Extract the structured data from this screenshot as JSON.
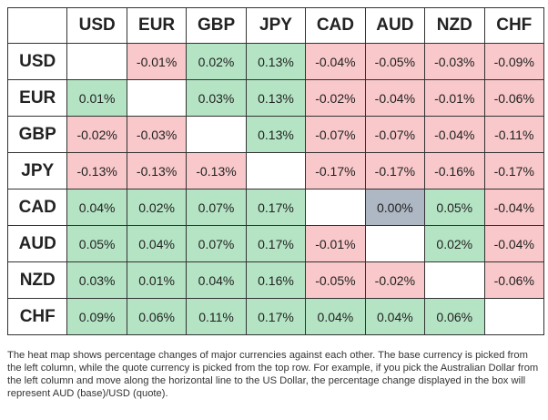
{
  "table": {
    "columns": [
      "USD",
      "EUR",
      "GBP",
      "JPY",
      "CAD",
      "AUD",
      "NZD",
      "CHF"
    ],
    "rows": [
      {
        "label": "USD",
        "cells": [
          null,
          "-0.01%",
          "0.02%",
          "0.13%",
          "-0.04%",
          "-0.05%",
          "-0.03%",
          "-0.09%"
        ]
      },
      {
        "label": "EUR",
        "cells": [
          "0.01%",
          null,
          "0.03%",
          "0.13%",
          "-0.02%",
          "-0.04%",
          "-0.01%",
          "-0.06%"
        ]
      },
      {
        "label": "GBP",
        "cells": [
          "-0.02%",
          "-0.03%",
          null,
          "0.13%",
          "-0.07%",
          "-0.07%",
          "-0.04%",
          "-0.11%"
        ]
      },
      {
        "label": "JPY",
        "cells": [
          "-0.13%",
          "-0.13%",
          "-0.13%",
          null,
          "-0.17%",
          "-0.17%",
          "-0.16%",
          "-0.17%"
        ]
      },
      {
        "label": "CAD",
        "cells": [
          "0.04%",
          "0.02%",
          "0.07%",
          "0.17%",
          null,
          "0.00%",
          "0.05%",
          "-0.04%"
        ]
      },
      {
        "label": "AUD",
        "cells": [
          "0.05%",
          "0.04%",
          "0.07%",
          "0.17%",
          "-0.01%",
          null,
          "0.02%",
          "-0.04%"
        ]
      },
      {
        "label": "NZD",
        "cells": [
          "0.03%",
          "0.01%",
          "0.04%",
          "0.16%",
          "-0.05%",
          "-0.02%",
          null,
          "-0.06%"
        ]
      },
      {
        "label": "CHF",
        "cells": [
          "0.09%",
          "0.06%",
          "0.11%",
          "0.17%",
          "0.04%",
          "0.04%",
          "0.06%",
          null
        ]
      }
    ]
  },
  "footnote": "The heat map shows percentage changes of major currencies against each other. The base currency is picked from the left column, while the quote currency is picked from the top row. For example, if you pick the Australian Dollar from the left column and move along the horizontal line to the US Dollar, the percentage change displayed in the box will represent AUD (base)/USD (quote)."
}
